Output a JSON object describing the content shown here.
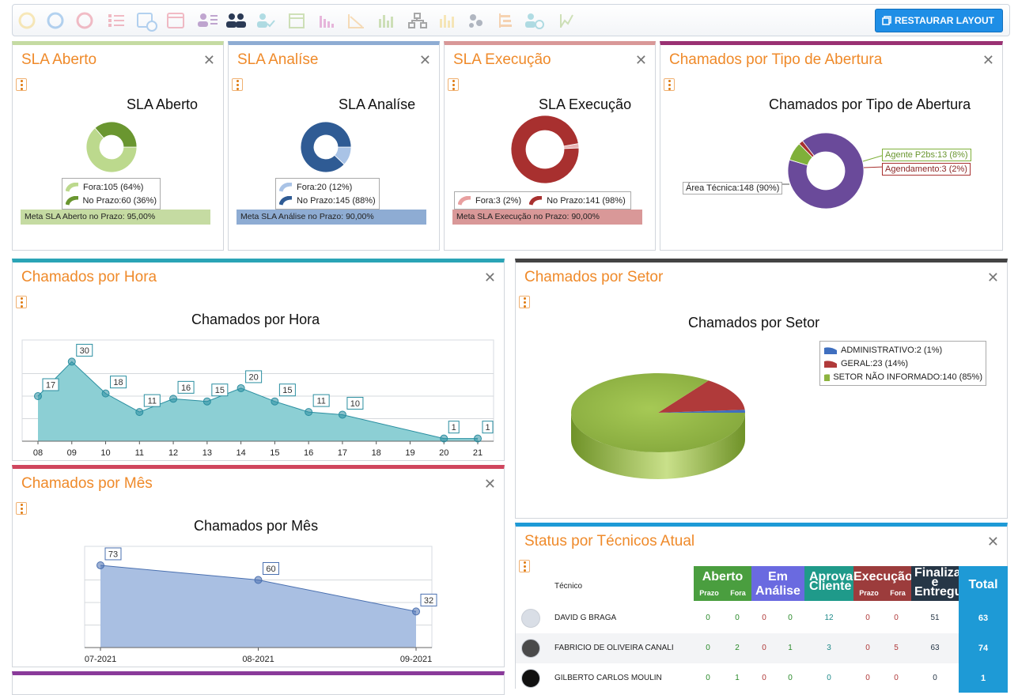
{
  "toolbar": {
    "icons": [
      "donut-icon",
      "donut-icon",
      "donut-icon",
      "list-icon",
      "calendar-clock-icon",
      "calendar-icon",
      "user-list-icon",
      "users-icon",
      "user-check-icon",
      "window-icon",
      "bar-chart-icon",
      "line-chart-icon",
      "column-chart-icon",
      "hierarchy-icon",
      "column-chart-icon",
      "scatter-icon",
      "gantt-icon",
      "user-clock-icon",
      "trend-icon"
    ],
    "restore_label": "RESTAURAR LAYOUT"
  },
  "sla_aberto": {
    "title": "SLA Aberto",
    "chart_title": "SLA Aberto",
    "legend": [
      "Fora:105 (64%)",
      "No Prazo:60 (36%)"
    ],
    "meta": "Meta SLA Aberto no Prazo: 95,00%"
  },
  "sla_analise": {
    "title": "SLA Analíse",
    "chart_title": "SLA Analíse",
    "legend": [
      "Fora:20 (12%)",
      "No Prazo:145 (88%)"
    ],
    "meta": "Meta SLA Análise no Prazo: 90,00%"
  },
  "sla_execucao": {
    "title": "SLA Execução",
    "chart_title": "SLA Execução",
    "legend": [
      "Fora:3 (2%)",
      "No Prazo:141 (98%)"
    ],
    "meta": "Meta SLA Execução no Prazo: 90,00%"
  },
  "tipo_abertura": {
    "title": "Chamados por Tipo de Abertura",
    "chart_title": "Chamados por Tipo de Abertura",
    "labels": [
      "Área Técnica:148 (90%)",
      "Agente P2bs:13 (8%)",
      "Agendamento:3 (2%)"
    ]
  },
  "hora": {
    "title": "Chamados por Hora",
    "chart_title": "Chamados por Hora"
  },
  "mes": {
    "title": "Chamados por Mês",
    "chart_title": "Chamados por Mês"
  },
  "setor": {
    "title": "Chamados por Setor",
    "chart_title": "Chamados por Setor",
    "legend": [
      "ADMINISTRATIVO:2 (1%)",
      "GERAL:23 (14%)",
      "SETOR NÃO INFORMADO:140 (85%)"
    ]
  },
  "status": {
    "title": "Status por Técnicos Atual",
    "col_tecnico": "Técnico",
    "groups": {
      "aberto": "Aberto",
      "analise": "Em Análise",
      "aprovacao": "Aprovação Cliente",
      "execucao": "Execução",
      "finalizado": "Finalizado e Entregues",
      "total": "Total"
    },
    "sub": {
      "prazo": "Prazo",
      "fora": "Fora"
    },
    "rows": [
      {
        "name": "DAVID G BRAGA",
        "values": [
          "0",
          "0",
          "0",
          "0",
          "12",
          "0",
          "0",
          "51"
        ],
        "total": "63"
      },
      {
        "name": "FABRICIO DE OLIVEIRA CANALI",
        "values": [
          "0",
          "2",
          "0",
          "1",
          "3",
          "0",
          "5",
          "63"
        ],
        "total": "74"
      },
      {
        "name": "GILBERTO CARLOS MOULIN",
        "values": [
          "0",
          "1",
          "0",
          "0",
          "0",
          "0",
          "0",
          "0"
        ],
        "total": "1"
      }
    ]
  },
  "colors": {
    "accent_orange": "#ef8a2a",
    "sla_aberto_bar": "#c5dba2",
    "sla_analise_bar": "#8eacd3",
    "sla_execucao_bar": "#d99898",
    "hora_border": "#2aa4b6",
    "mes_border": "#d0465e",
    "setor_border": "#444444",
    "status_border": "#1e9ad6",
    "tipo_border": "#9a3173"
  },
  "chart_data": [
    {
      "type": "pie",
      "title": "SLA Aberto",
      "categories": [
        "Fora",
        "No Prazo"
      ],
      "values": [
        105,
        60
      ],
      "percent": [
        64,
        36
      ]
    },
    {
      "type": "pie",
      "title": "SLA Analíse",
      "categories": [
        "Fora",
        "No Prazo"
      ],
      "values": [
        20,
        145
      ],
      "percent": [
        12,
        88
      ]
    },
    {
      "type": "pie",
      "title": "SLA Execução",
      "categories": [
        "Fora",
        "No Prazo"
      ],
      "values": [
        3,
        141
      ],
      "percent": [
        2,
        98
      ]
    },
    {
      "type": "pie",
      "title": "Chamados por Tipo de Abertura",
      "categories": [
        "Área Técnica",
        "Agente P2bs",
        "Agendamento"
      ],
      "values": [
        148,
        13,
        3
      ],
      "percent": [
        90,
        8,
        2
      ]
    },
    {
      "type": "area",
      "title": "Chamados por Hora",
      "categories": [
        "08",
        "09",
        "10",
        "11",
        "12",
        "13",
        "14",
        "15",
        "16",
        "17",
        "18",
        "19",
        "20",
        "21"
      ],
      "points": [
        {
          "x": "08",
          "y": 17
        },
        {
          "x": "09",
          "y": 30
        },
        {
          "x": "10",
          "y": 18
        },
        {
          "x": "11",
          "y": 11
        },
        {
          "x": "12",
          "y": 16
        },
        {
          "x": "13",
          "y": 15
        },
        {
          "x": "14",
          "y": 20
        },
        {
          "x": "15",
          "y": 15
        },
        {
          "x": "16",
          "y": 11
        },
        {
          "x": "17",
          "y": 10
        },
        {
          "x": "20",
          "y": 1
        },
        {
          "x": "21",
          "y": 1
        }
      ],
      "ylim": [
        0,
        34
      ],
      "grid": true
    },
    {
      "type": "area",
      "title": "Chamados por Mês",
      "categories": [
        "07-2021",
        "08-2021",
        "09-2021"
      ],
      "values": [
        73,
        60,
        32
      ],
      "ylim": [
        0,
        80
      ],
      "grid": true
    },
    {
      "type": "pie",
      "title": "Chamados por Setor",
      "categories": [
        "ADMINISTRATIVO",
        "GERAL",
        "SETOR NÃO INFORMADO"
      ],
      "values": [
        2,
        23,
        140
      ],
      "percent": [
        1,
        14,
        85
      ],
      "legend": "top-right"
    }
  ]
}
